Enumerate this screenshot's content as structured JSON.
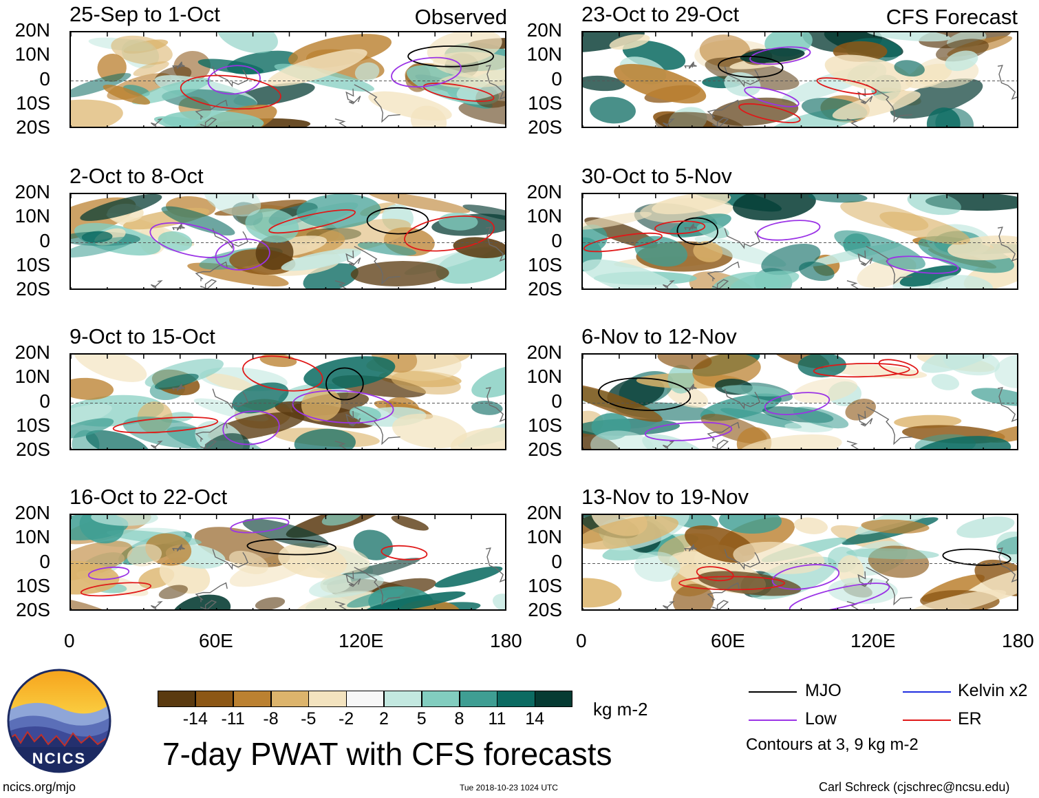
{
  "chart_data": {
    "type": "heatmap",
    "title": "7-day PWAT with CFS forecasts",
    "variable": "7-day PWAT anomaly",
    "units": "kg m-2",
    "panel_labels": {
      "observed": "Observed",
      "forecast": "CFS Forecast"
    },
    "lat_ticks": [
      "20N",
      "10N",
      "0",
      "10S",
      "20S"
    ],
    "lon_ticks": [
      "0",
      "60E",
      "120E",
      "180"
    ],
    "lat_range": [
      -20,
      20
    ],
    "lon_range": [
      0,
      180
    ],
    "panels": [
      {
        "id": "obs1",
        "group": "observed",
        "period": "25-Sep to 1-Oct"
      },
      {
        "id": "obs2",
        "group": "observed",
        "period": "2-Oct to 8-Oct"
      },
      {
        "id": "obs3",
        "group": "observed",
        "period": "9-Oct to 15-Oct"
      },
      {
        "id": "obs4",
        "group": "observed",
        "period": "16-Oct to 22-Oct"
      },
      {
        "id": "fc1",
        "group": "forecast",
        "period": "23-Oct to 29-Oct"
      },
      {
        "id": "fc2",
        "group": "forecast",
        "period": "30-Oct to 5-Nov"
      },
      {
        "id": "fc3",
        "group": "forecast",
        "period": "6-Nov to 12-Nov"
      },
      {
        "id": "fc4",
        "group": "forecast",
        "period": "13-Nov to 19-Nov"
      }
    ],
    "colorbar": {
      "ticks": [
        "-14",
        "-11",
        "-8",
        "-5",
        "-2",
        "2",
        "5",
        "8",
        "11",
        "14"
      ],
      "colors": [
        "#5a3a10",
        "#8c5716",
        "#bb8131",
        "#dcb46c",
        "#f3e3bf",
        "#f7f7f7",
        "#c3e8e0",
        "#82cdbf",
        "#3f9e93",
        "#0c6b62",
        "#063b33"
      ]
    },
    "contours": {
      "note": "Contours at 3, 9 kg m-2",
      "levels": [
        3,
        9
      ],
      "legend": [
        {
          "label": "MJO",
          "color": "#000000"
        },
        {
          "label": "Kelvin x2",
          "color": "#1f2de0"
        },
        {
          "label": "Low",
          "color": "#9b33e6"
        },
        {
          "label": "ER",
          "color": "#e01818"
        }
      ]
    }
  },
  "footer": {
    "logo_text": "NCICS",
    "url": "ncics.org/mjo",
    "timestamp": "Tue 2018-10-23 1024 UTC",
    "credit": "Carl Schreck (cjschrec@ncsu.edu)"
  }
}
